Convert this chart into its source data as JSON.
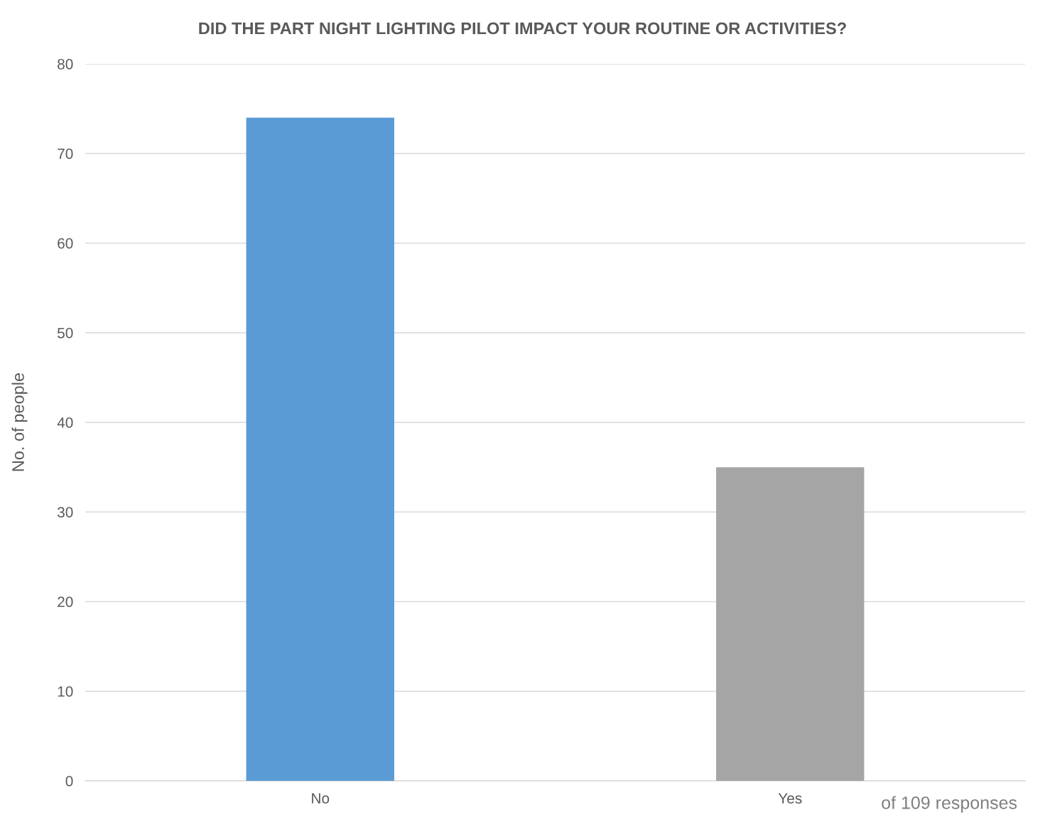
{
  "chart_data": {
    "type": "bar",
    "title": "DID THE PART NIGHT LIGHTING PILOT IMPACT YOUR ROUTINE OR ACTIVITIES?",
    "ylabel": "No. of people",
    "categories": [
      "No",
      "Yes"
    ],
    "values": [
      74,
      35
    ],
    "colors": [
      "#5b9bd5",
      "#a5a5a5"
    ],
    "ylim": [
      0,
      80
    ],
    "yticks": [
      0,
      10,
      20,
      30,
      40,
      50,
      60,
      70,
      80
    ],
    "grid": "y",
    "legend": false,
    "annotations": [
      "of 109 responses"
    ]
  }
}
